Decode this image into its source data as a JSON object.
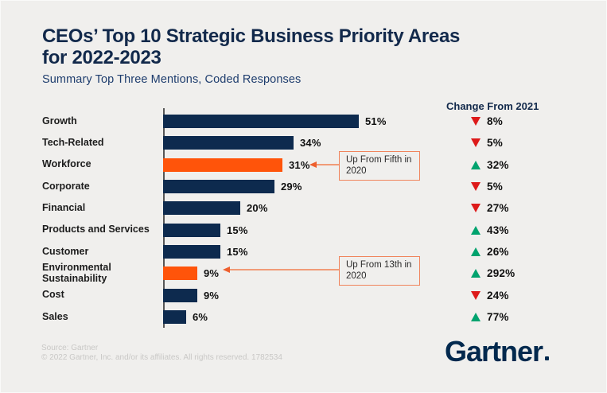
{
  "title": {
    "line1": "CEOs’ Top 10 Strategic Business Priority Areas",
    "line2": "for 2022-2023"
  },
  "subtitle": "Summary Top Three Mentions, Coded Responses",
  "change_header": "Change From 2021",
  "chart_data": {
    "type": "bar",
    "orientation": "horizontal",
    "title": "CEOs’ Top 10 Strategic Business Priority Areas for 2022-2023",
    "subtitle": "Summary Top Three Mentions, Coded Responses",
    "xlim": [
      0,
      55
    ],
    "grid": false,
    "categories": [
      "Growth",
      "Tech-Related",
      "Workforce",
      "Corporate",
      "Financial",
      "Products and Services",
      "Customer",
      "Environmental Sustainability",
      "Cost",
      "Sales"
    ],
    "values": [
      51,
      34,
      31,
      29,
      20,
      15,
      15,
      9,
      9,
      6
    ],
    "rows": [
      {
        "category": "Growth",
        "value": 51,
        "value_label": "51%",
        "highlighted": false,
        "change_direction": "down",
        "change_label": "8%"
      },
      {
        "category": "Tech-Related",
        "value": 34,
        "value_label": "34%",
        "highlighted": false,
        "change_direction": "down",
        "change_label": "5%"
      },
      {
        "category": "Workforce",
        "value": 31,
        "value_label": "31%",
        "highlighted": true,
        "change_direction": "up",
        "change_label": "32%"
      },
      {
        "category": "Corporate",
        "value": 29,
        "value_label": "29%",
        "highlighted": false,
        "change_direction": "down",
        "change_label": "5%"
      },
      {
        "category": "Financial",
        "value": 20,
        "value_label": "20%",
        "highlighted": false,
        "change_direction": "down",
        "change_label": "27%"
      },
      {
        "category": "Products and Services",
        "value": 15,
        "value_label": "15%",
        "highlighted": false,
        "change_direction": "up",
        "change_label": "43%"
      },
      {
        "category": "Customer",
        "value": 15,
        "value_label": "15%",
        "highlighted": false,
        "change_direction": "up",
        "change_label": "26%"
      },
      {
        "category": "Environmental Sustainability",
        "value": 9,
        "value_label": "9%",
        "highlighted": true,
        "change_direction": "up",
        "change_label": "292%"
      },
      {
        "category": "Cost",
        "value": 9,
        "value_label": "9%",
        "highlighted": false,
        "change_direction": "down",
        "change_label": "24%"
      },
      {
        "category": "Sales",
        "value": 6,
        "value_label": "6%",
        "highlighted": false,
        "change_direction": "up",
        "change_label": "77%"
      }
    ]
  },
  "annotations": [
    {
      "text": "Up From Fifth in 2020",
      "target": "Workforce"
    },
    {
      "text": "Up From 13th in 2020",
      "target": "Environmental Sustainability"
    }
  ],
  "footer": {
    "source": "Source: Gartner",
    "copyright": "© 2022 Gartner, Inc. and/or its affiliates. All rights reserved. 1782534"
  },
  "logo": {
    "text": "Gartner"
  },
  "colors": {
    "background": "#f0efed",
    "title_navy": "#12294b",
    "subtitle_navy": "#1e3d6e",
    "bar_navy": "#0d2a4e",
    "highlight_orange": "#ff540a",
    "decrease_red": "#dd1a1a",
    "increase_green": "#00a36e",
    "annotation_orange": "#f0845c"
  }
}
